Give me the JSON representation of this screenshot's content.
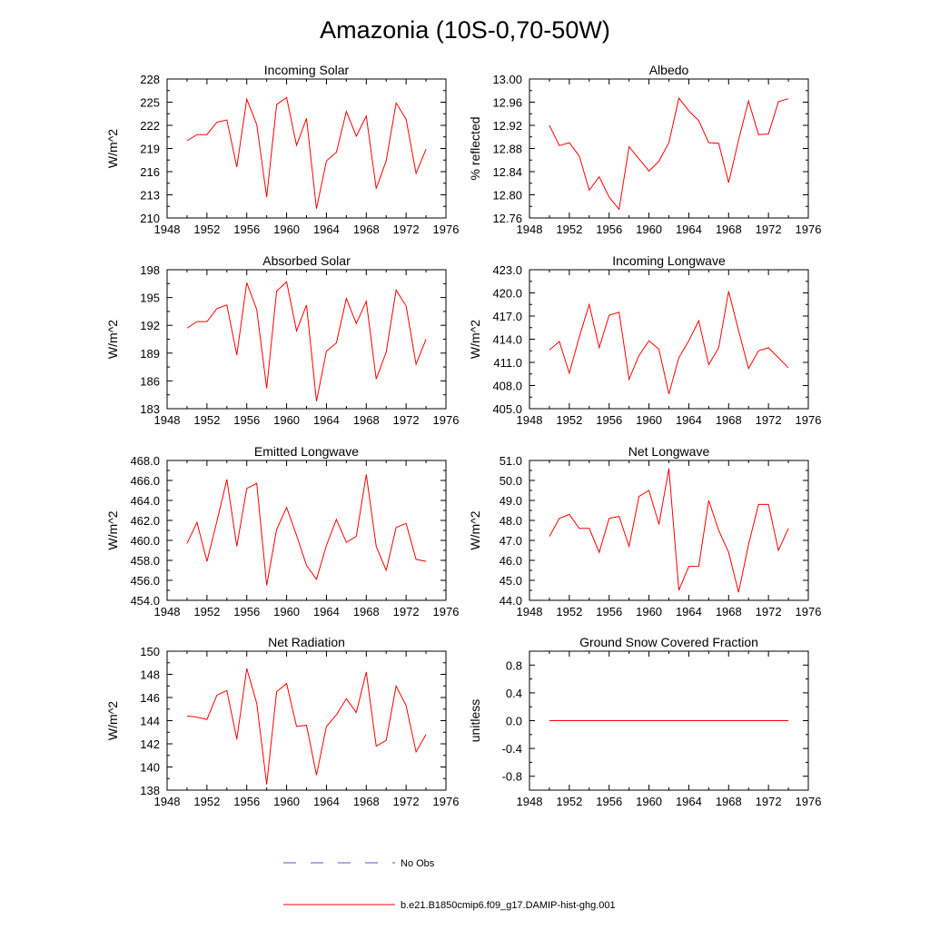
{
  "page": {
    "title": "Amazonia (10S-0,70-50W)"
  },
  "legend": {
    "obs_label": "No Obs",
    "obs_color": "#5555cc",
    "model_label": "b.e21.B1850cmip6.f09_g17.DAMIP-hist-ghg.001",
    "model_color": "#ff0000"
  },
  "chart_data": [
    {
      "type": "line",
      "title": "Incoming Solar",
      "ylabel": "W/m^2",
      "xlim": [
        1948,
        1976
      ],
      "ylim": [
        210,
        228
      ],
      "xticks": [
        1948,
        1952,
        1956,
        1960,
        1964,
        1968,
        1972,
        1976
      ],
      "yticks": [
        "210",
        "213",
        "216",
        "219",
        "222",
        "225",
        "228"
      ],
      "x": [
        1950,
        1951,
        1952,
        1953,
        1954,
        1955,
        1956,
        1957,
        1958,
        1959,
        1960,
        1961,
        1962,
        1963,
        1964,
        1965,
        1966,
        1967,
        1968,
        1969,
        1970,
        1971,
        1972,
        1973,
        1974
      ],
      "series": [
        {
          "values": [
            220.0,
            220.8,
            220.8,
            222.4,
            222.7,
            216.6,
            225.4,
            222.1,
            212.7,
            224.7,
            225.6,
            219.4,
            222.9,
            211.2,
            217.4,
            218.5,
            223.8,
            220.6,
            223.2,
            213.8,
            217.4,
            224.9,
            222.8,
            215.8,
            218.9
          ]
        }
      ]
    },
    {
      "type": "line",
      "title": "Albedo",
      "ylabel": "% reflected",
      "xlim": [
        1948,
        1976
      ],
      "ylim": [
        12.76,
        13.0
      ],
      "xticks": [
        1948,
        1952,
        1956,
        1960,
        1964,
        1968,
        1972,
        1976
      ],
      "yticks": [
        "12.76",
        "12.80",
        "12.84",
        "12.88",
        "12.92",
        "12.96",
        "13.00"
      ],
      "x": [
        1950,
        1951,
        1952,
        1953,
        1954,
        1955,
        1956,
        1957,
        1958,
        1959,
        1960,
        1961,
        1962,
        1963,
        1964,
        1965,
        1966,
        1967,
        1968,
        1969,
        1970,
        1971,
        1972,
        1973,
        1974
      ],
      "series": [
        {
          "values": [
            12.92,
            12.885,
            12.89,
            12.867,
            12.808,
            12.831,
            12.796,
            12.775,
            12.883,
            12.862,
            12.841,
            12.858,
            12.89,
            12.967,
            12.945,
            12.928,
            12.89,
            12.889,
            12.821,
            12.895,
            12.962,
            12.904,
            12.905,
            12.961,
            12.966
          ]
        }
      ]
    },
    {
      "type": "line",
      "title": "Absorbed Solar",
      "ylabel": "W/m^2",
      "xlim": [
        1948,
        1976
      ],
      "ylim": [
        183,
        198
      ],
      "xticks": [
        1948,
        1952,
        1956,
        1960,
        1964,
        1968,
        1972,
        1976
      ],
      "yticks": [
        "183",
        "186",
        "189",
        "192",
        "195",
        "198"
      ],
      "x": [
        1950,
        1951,
        1952,
        1953,
        1954,
        1955,
        1956,
        1957,
        1958,
        1959,
        1960,
        1961,
        1962,
        1963,
        1964,
        1965,
        1966,
        1967,
        1968,
        1969,
        1970,
        1971,
        1972,
        1973,
        1974
      ],
      "series": [
        {
          "values": [
            191.7,
            192.4,
            192.4,
            193.8,
            194.2,
            188.8,
            196.6,
            193.7,
            185.2,
            195.7,
            196.7,
            191.4,
            194.2,
            183.8,
            189.2,
            190.1,
            194.9,
            192.2,
            194.6,
            186.2,
            189.1,
            195.8,
            194.1,
            187.8,
            190.5
          ]
        }
      ]
    },
    {
      "type": "line",
      "title": "Incoming Longwave",
      "ylabel": "W/m^2",
      "xlim": [
        1948,
        1976
      ],
      "ylim": [
        405,
        423
      ],
      "xticks": [
        1948,
        1952,
        1956,
        1960,
        1964,
        1968,
        1972,
        1976
      ],
      "yticks": [
        "405.0",
        "408.0",
        "411.0",
        "414.0",
        "417.0",
        "420.0",
        "423.0"
      ],
      "x": [
        1950,
        1951,
        1952,
        1953,
        1954,
        1955,
        1956,
        1957,
        1958,
        1959,
        1960,
        1961,
        1962,
        1963,
        1964,
        1965,
        1966,
        1967,
        1968,
        1969,
        1970,
        1971,
        1972,
        1973,
        1974
      ],
      "series": [
        {
          "values": [
            412.6,
            413.7,
            409.6,
            414.3,
            418.5,
            412.9,
            417.1,
            417.5,
            408.8,
            411.9,
            413.8,
            412.7,
            406.9,
            411.6,
            413.8,
            416.4,
            410.7,
            412.9,
            420.2,
            415.1,
            410.2,
            412.5,
            412.9,
            411.6,
            410.3
          ]
        }
      ]
    },
    {
      "type": "line",
      "title": "Emitted Longwave",
      "ylabel": "W/m^2",
      "xlim": [
        1948,
        1976
      ],
      "ylim": [
        454,
        468
      ],
      "xticks": [
        1948,
        1952,
        1956,
        1960,
        1964,
        1968,
        1972,
        1976
      ],
      "yticks": [
        "454.0",
        "456.0",
        "458.0",
        "460.0",
        "462.0",
        "464.0",
        "466.0",
        "468.0"
      ],
      "x": [
        1950,
        1951,
        1952,
        1953,
        1954,
        1955,
        1956,
        1957,
        1958,
        1959,
        1960,
        1961,
        1962,
        1963,
        1964,
        1965,
        1966,
        1967,
        1968,
        1969,
        1970,
        1971,
        1972,
        1973,
        1974
      ],
      "series": [
        {
          "values": [
            459.7,
            461.8,
            457.9,
            461.9,
            466.1,
            459.4,
            465.2,
            465.7,
            455.5,
            461.1,
            463.3,
            460.5,
            457.5,
            456.1,
            459.5,
            462.1,
            459.8,
            460.4,
            466.6,
            459.4,
            457.0,
            461.3,
            461.7,
            458.1,
            457.9
          ]
        }
      ]
    },
    {
      "type": "line",
      "title": "Net Longwave",
      "ylabel": "W/m^2",
      "xlim": [
        1948,
        1976
      ],
      "ylim": [
        44,
        51
      ],
      "xticks": [
        1948,
        1952,
        1956,
        1960,
        1964,
        1968,
        1972,
        1976
      ],
      "yticks": [
        "44.0",
        "45.0",
        "46.0",
        "47.0",
        "48.0",
        "49.0",
        "50.0",
        "51.0"
      ],
      "x": [
        1950,
        1951,
        1952,
        1953,
        1954,
        1955,
        1956,
        1957,
        1958,
        1959,
        1960,
        1961,
        1962,
        1963,
        1964,
        1965,
        1966,
        1967,
        1968,
        1969,
        1970,
        1971,
        1972,
        1973,
        1974
      ],
      "series": [
        {
          "values": [
            47.2,
            48.1,
            48.3,
            47.6,
            47.6,
            46.4,
            48.1,
            48.2,
            46.7,
            49.2,
            49.5,
            47.8,
            50.6,
            44.5,
            45.7,
            45.7,
            49.0,
            47.5,
            46.4,
            44.4,
            46.8,
            48.8,
            48.8,
            46.5,
            47.6
          ]
        }
      ]
    },
    {
      "type": "line",
      "title": "Net Radiation",
      "ylabel": "W/m^2",
      "xlim": [
        1948,
        1976
      ],
      "ylim": [
        138,
        150
      ],
      "xticks": [
        1948,
        1952,
        1956,
        1960,
        1964,
        1968,
        1972,
        1976
      ],
      "yticks": [
        "138",
        "140",
        "142",
        "144",
        "146",
        "148",
        "150"
      ],
      "x": [
        1950,
        1951,
        1952,
        1953,
        1954,
        1955,
        1956,
        1957,
        1958,
        1959,
        1960,
        1961,
        1962,
        1963,
        1964,
        1965,
        1966,
        1967,
        1968,
        1969,
        1970,
        1971,
        1972,
        1973,
        1974
      ],
      "series": [
        {
          "values": [
            144.4,
            144.3,
            144.1,
            146.2,
            146.6,
            142.4,
            148.5,
            145.5,
            138.5,
            146.5,
            147.2,
            143.5,
            143.6,
            139.3,
            143.5,
            144.5,
            145.9,
            144.7,
            148.2,
            141.8,
            142.3,
            147.0,
            145.3,
            141.3,
            142.8
          ]
        }
      ]
    },
    {
      "type": "line",
      "title": "Ground Snow Covered Fraction",
      "ylabel": "unitless",
      "xlim": [
        1948,
        1976
      ],
      "ylim": [
        -1.0,
        1.0
      ],
      "xticks": [
        1948,
        1952,
        1956,
        1960,
        1964,
        1968,
        1972,
        1976
      ],
      "yticks": [
        "-0.8",
        "-0.4",
        "0.0",
        "0.4",
        "0.8"
      ],
      "x": [
        1950,
        1951,
        1952,
        1953,
        1954,
        1955,
        1956,
        1957,
        1958,
        1959,
        1960,
        1961,
        1962,
        1963,
        1964,
        1965,
        1966,
        1967,
        1968,
        1969,
        1970,
        1971,
        1972,
        1973,
        1974
      ],
      "series": [
        {
          "values": [
            0,
            0,
            0,
            0,
            0,
            0,
            0,
            0,
            0,
            0,
            0,
            0,
            0,
            0,
            0,
            0,
            0,
            0,
            0,
            0,
            0,
            0,
            0,
            0,
            0
          ]
        }
      ]
    }
  ]
}
